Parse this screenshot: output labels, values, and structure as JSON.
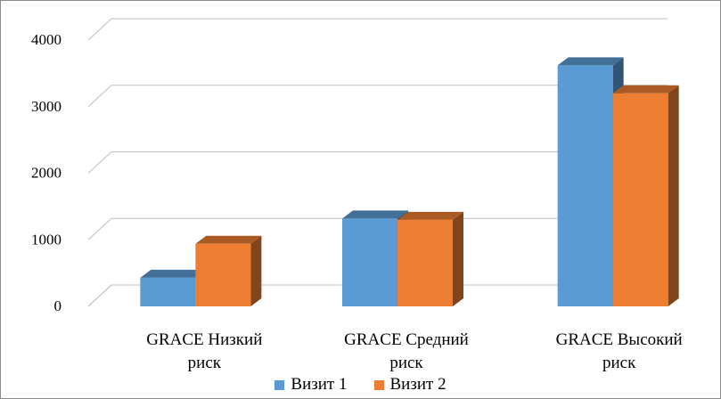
{
  "chart_data": {
    "type": "bar",
    "categories": [
      [
        "GRACE Низкий",
        "риск"
      ],
      [
        "GRACE Средний",
        "риск"
      ],
      [
        "GRACE  Высокий",
        "риск"
      ]
    ],
    "series": [
      {
        "name": "Визит 1",
        "color": "#5b9bd5",
        "values": [
          430,
          1320,
          3620
        ]
      },
      {
        "name": "Визит 2",
        "color": "#ed7d31",
        "values": [
          940,
          1300,
          3200
        ]
      }
    ],
    "y_ticks": [
      "0",
      "1000",
      "2000",
      "3000",
      "4000"
    ],
    "ylim": [
      0,
      4000
    ],
    "grid": true,
    "legend_position": "bottom",
    "style": "3d-clustered-column"
  }
}
